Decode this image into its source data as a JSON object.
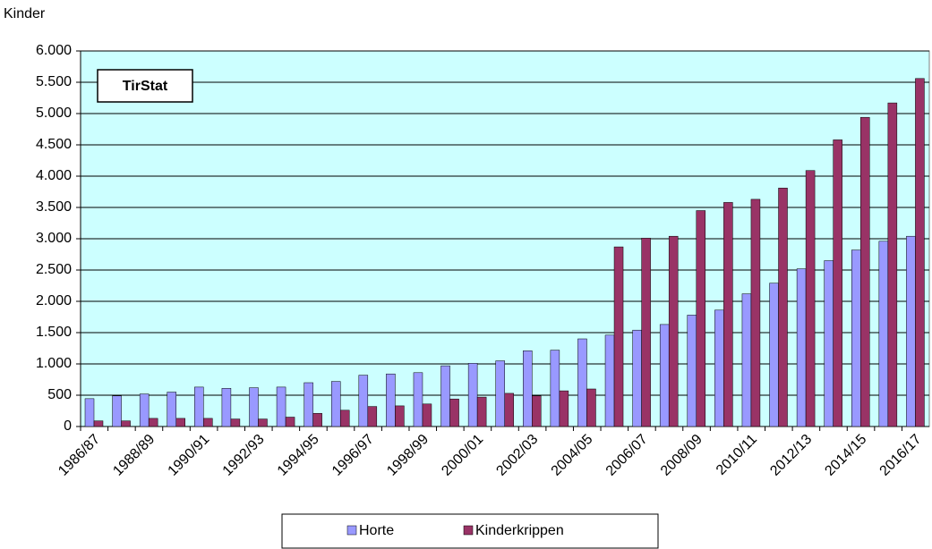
{
  "chart_data": {
    "type": "bar",
    "y_label": "Kinder",
    "annotation": "TirStat",
    "categories": [
      "1986/87",
      null,
      "1988/89",
      null,
      "1990/91",
      null,
      "1992/93",
      null,
      "1994/95",
      null,
      "1996/97",
      null,
      "1998/99",
      null,
      "2000/01",
      null,
      "2002/03",
      null,
      "2004/05",
      null,
      "2006/07",
      null,
      "2008/09",
      null,
      "2010/11",
      null,
      "2012/13",
      null,
      "2014/15",
      null,
      "2016/17"
    ],
    "series": [
      {
        "name": "Horte",
        "color": "#9999ff",
        "values": [
          445,
          490,
          520,
          550,
          630,
          610,
          620,
          630,
          700,
          720,
          820,
          840,
          860,
          970,
          1010,
          1050,
          1210,
          1220,
          1400,
          1460,
          1540,
          1630,
          1780,
          1860,
          2120,
          2290,
          2520,
          2650,
          2820,
          2960,
          3040
        ]
      },
      {
        "name": "Kinderkrippen",
        "color": "#993366",
        "values": [
          90,
          90,
          130,
          130,
          130,
          120,
          120,
          150,
          210,
          260,
          320,
          330,
          360,
          440,
          470,
          530,
          490,
          570,
          600,
          2870,
          3010,
          3040,
          3450,
          3580,
          3630,
          3810,
          4090,
          4580,
          4940,
          5170,
          5560
        ]
      }
    ],
    "ylim": [
      0,
      6000
    ],
    "yticks": [
      0,
      500,
      {
        "value": 1000,
        "label": "1.000"
      },
      {
        "value": 1500,
        "label": "1.500"
      },
      {
        "value": 2000,
        "label": "2.000"
      },
      {
        "value": 2500,
        "label": "2.500"
      },
      {
        "value": 3000,
        "label": "3.000"
      },
      {
        "value": 3500,
        "label": "3.500"
      },
      {
        "value": 4000,
        "label": "4.000"
      },
      {
        "value": 4500,
        "label": "4.500"
      },
      {
        "value": 5000,
        "label": "5.000"
      },
      {
        "value": 5500,
        "label": "5.500"
      },
      {
        "value": 6000,
        "label": "6.000"
      }
    ],
    "grid": true,
    "plot_background": "#ccffff",
    "legend": "bottom"
  }
}
